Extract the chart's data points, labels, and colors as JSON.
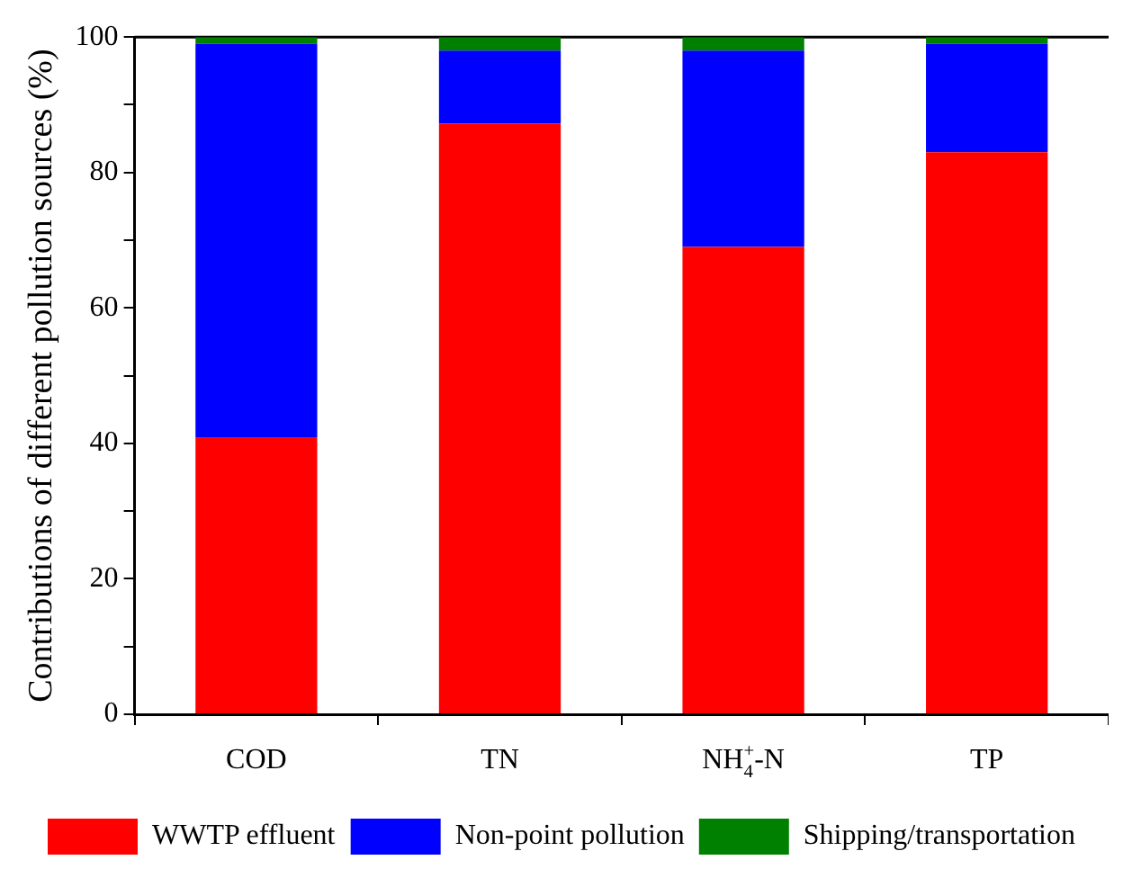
{
  "chart_data": {
    "type": "bar",
    "stacked": true,
    "ylabel": "Contributions of different pollution sources (%)",
    "categories": [
      "COD",
      "TN",
      "NH$_{4}$$^{+}$-N",
      "TP"
    ],
    "series": [
      {
        "name": "WWTP effluent",
        "color": "#ff0000",
        "values": [
          40.8,
          87.2,
          69.0,
          83.0
        ]
      },
      {
        "name": "Non-point pollution",
        "color": "#0000ff",
        "values": [
          58.2,
          10.8,
          29.0,
          16.0
        ]
      },
      {
        "name": "Shipping/transportation",
        "color": "#008000",
        "values": [
          1.0,
          2.0,
          2.0,
          1.0
        ]
      }
    ],
    "ylim": [
      0,
      100
    ],
    "yticks": [
      0,
      {
        "value": 10,
        "label": null
      },
      20,
      {
        "value": 30,
        "label": null
      },
      40,
      {
        "value": 50,
        "label": null
      },
      60,
      {
        "value": 70,
        "label": null
      },
      80,
      {
        "value": 90,
        "label": null
      },
      100
    ],
    "legend": "bottom"
  }
}
